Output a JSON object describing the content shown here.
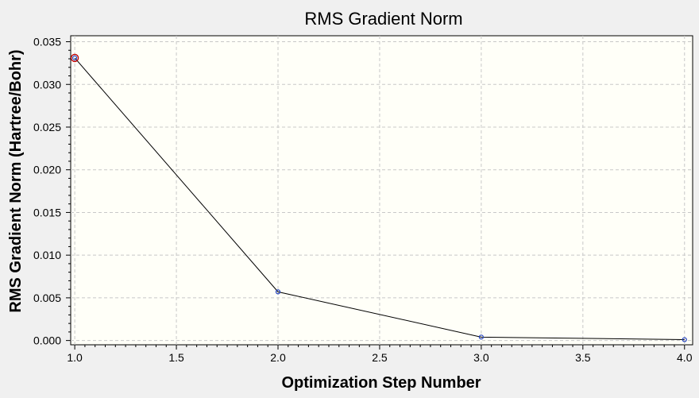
{
  "chart_data": {
    "type": "line",
    "title": "RMS Gradient Norm",
    "xlabel": "Optimization Step Number",
    "ylabel": "RMS Gradient Norm (Hartree/Bohr)",
    "xlim": [
      0.98,
      4.04
    ],
    "ylim": [
      -0.0005,
      0.0357
    ],
    "x_ticks": [
      "1.0",
      "1.5",
      "2.0",
      "2.5",
      "3.0",
      "3.5",
      "4.0"
    ],
    "y_ticks": [
      "0.000",
      "0.005",
      "0.010",
      "0.015",
      "0.020",
      "0.025",
      "0.030",
      "0.035"
    ],
    "x": [
      1,
      2,
      3,
      4
    ],
    "y": [
      0.0331,
      0.0057,
      0.0004,
      0.0001
    ],
    "grid": true,
    "highlighted_point_index": 0,
    "colors": {
      "line": "#000000",
      "points": "#1f3fbf",
      "highlight": "#c00000",
      "plot_background": "#fffff8"
    }
  }
}
